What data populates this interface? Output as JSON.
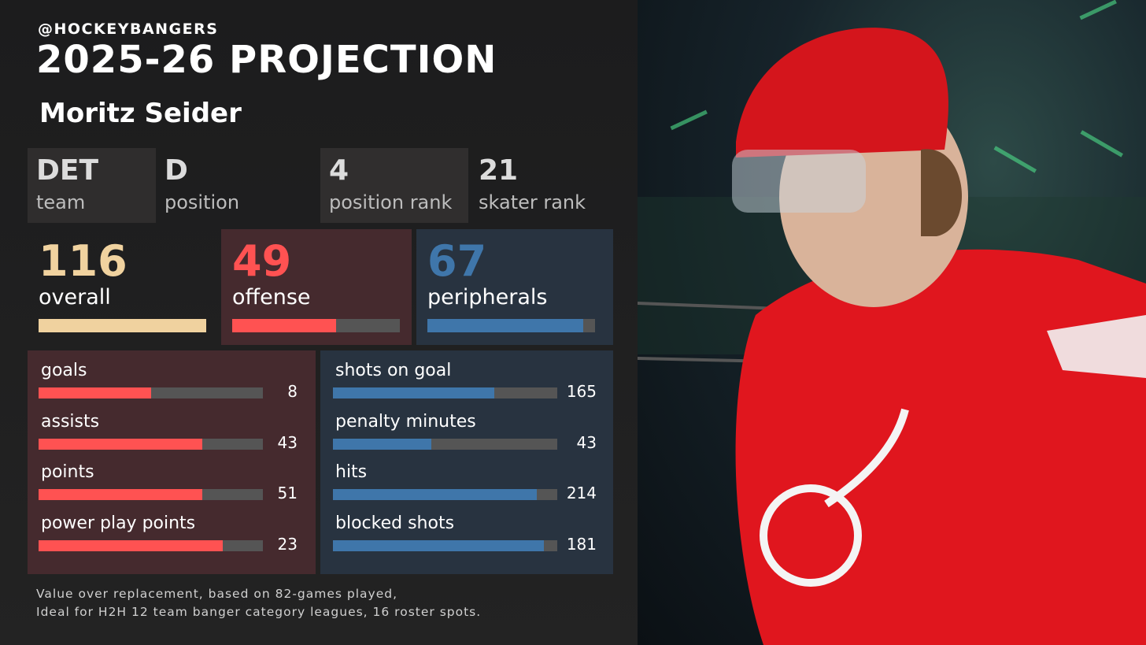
{
  "header": {
    "handle": "@HOCKEYBANGERS",
    "title": "2025-26 PROJECTION",
    "player": "Moritz Seider"
  },
  "info": [
    {
      "value": "DET",
      "label": "team"
    },
    {
      "value": "D",
      "label": "position"
    },
    {
      "value": 4,
      "label": "position rank"
    },
    {
      "value": 21,
      "label": "skater rank"
    }
  ],
  "scores": [
    {
      "value": 116,
      "label": "overall",
      "bar": 100,
      "color": "#f0d29f",
      "panel": "transparent"
    },
    {
      "value": 49,
      "label": "offense",
      "bar": 62,
      "color": "#ff5252",
      "panel": "#452a2e"
    },
    {
      "value": 67,
      "label": "peripherals",
      "bar": 93,
      "color": "#3f76aa",
      "panel": "#283340"
    }
  ],
  "offense_stats": {
    "color": "#ff5252",
    "panel": "#452a2e",
    "rows": [
      {
        "label": "goals",
        "value": 8,
        "bar": 50
      },
      {
        "label": "assists",
        "value": 43,
        "bar": 73
      },
      {
        "label": "points",
        "value": 51,
        "bar": 73
      },
      {
        "label": "power play points",
        "value": 23,
        "bar": 82
      }
    ]
  },
  "peripheral_stats": {
    "color": "#3f76aa",
    "panel": "#283340",
    "rows": [
      {
        "label": "shots on goal",
        "value": 165,
        "bar": 72
      },
      {
        "label": "penalty minutes",
        "value": 43,
        "bar": 44
      },
      {
        "label": "hits",
        "value": 214,
        "bar": 91
      },
      {
        "label": "blocked shots",
        "value": 181,
        "bar": 94
      }
    ]
  },
  "footnote": [
    "Value over replacement, based on 82-games played,",
    "Ideal for H2H 12 team banger category leagues, 16 roster spots."
  ]
}
